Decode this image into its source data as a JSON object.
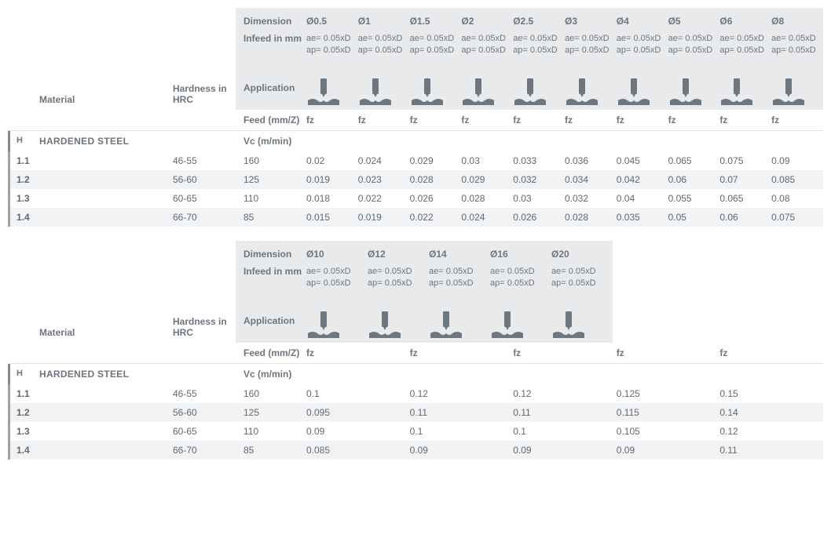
{
  "labels": {
    "material": "Material",
    "hardness": "Hardness in HRC",
    "dimension": "Dimension",
    "infeed": "Infeed in mm",
    "application": "Application",
    "feed": "Feed (mm/Z)",
    "vc": "Vc (m/min)",
    "fz": "fz"
  },
  "infeed_text": {
    "ae": "ae= 0.05xD",
    "ap": "ap= 0.05xD"
  },
  "material_group": {
    "code": "H",
    "name": "HARDENED STEEL"
  },
  "colors": {
    "header_bg": "#e9eaec",
    "text": "#6c7680",
    "row_alt": "#f2f3f4",
    "accent": "#7e8891",
    "icon": "#6d7780"
  },
  "fontsize": {
    "body": 12,
    "small": 11
  },
  "table1": {
    "type": "table",
    "diameters": [
      "Ø0.5",
      "Ø1",
      "Ø1.5",
      "Ø2",
      "Ø2.5",
      "Ø3",
      "Ø4",
      "Ø5",
      "Ø6",
      "Ø8"
    ],
    "rows": [
      {
        "idx": "1.1",
        "hrc": "46-55",
        "vc": "160",
        "fz": [
          "0.02",
          "0.024",
          "0.029",
          "0.03",
          "0.033",
          "0.036",
          "0.045",
          "0.065",
          "0.075",
          "0.09"
        ]
      },
      {
        "idx": "1.2",
        "hrc": "56-60",
        "vc": "125",
        "fz": [
          "0.019",
          "0.023",
          "0.028",
          "0.029",
          "0.032",
          "0.034",
          "0.042",
          "0.06",
          "0.07",
          "0.085"
        ]
      },
      {
        "idx": "1.3",
        "hrc": "60-65",
        "vc": "110",
        "fz": [
          "0.018",
          "0.022",
          "0.026",
          "0.028",
          "0.03",
          "0.032",
          "0.04",
          "0.055",
          "0.065",
          "0.08"
        ]
      },
      {
        "idx": "1.4",
        "hrc": "66-70",
        "vc": "85",
        "fz": [
          "0.015",
          "0.019",
          "0.022",
          "0.024",
          "0.026",
          "0.028",
          "0.035",
          "0.05",
          "0.06",
          "0.075"
        ]
      }
    ]
  },
  "table2": {
    "type": "table",
    "diameters": [
      "Ø10",
      "Ø12",
      "Ø14",
      "Ø16",
      "Ø20"
    ],
    "rows": [
      {
        "idx": "1.1",
        "hrc": "46-55",
        "vc": "160",
        "fz": [
          "0.1",
          "0.12",
          "0.12",
          "0.125",
          "0.15"
        ]
      },
      {
        "idx": "1.2",
        "hrc": "56-60",
        "vc": "125",
        "fz": [
          "0.095",
          "0.11",
          "0.11",
          "0.115",
          "0.14"
        ]
      },
      {
        "idx": "1.3",
        "hrc": "60-65",
        "vc": "110",
        "fz": [
          "0.09",
          "0.1",
          "0.1",
          "0.105",
          "0.12"
        ]
      },
      {
        "idx": "1.4",
        "hrc": "66-70",
        "vc": "85",
        "fz": [
          "0.085",
          "0.09",
          "0.09",
          "0.09",
          "0.11"
        ]
      }
    ]
  }
}
